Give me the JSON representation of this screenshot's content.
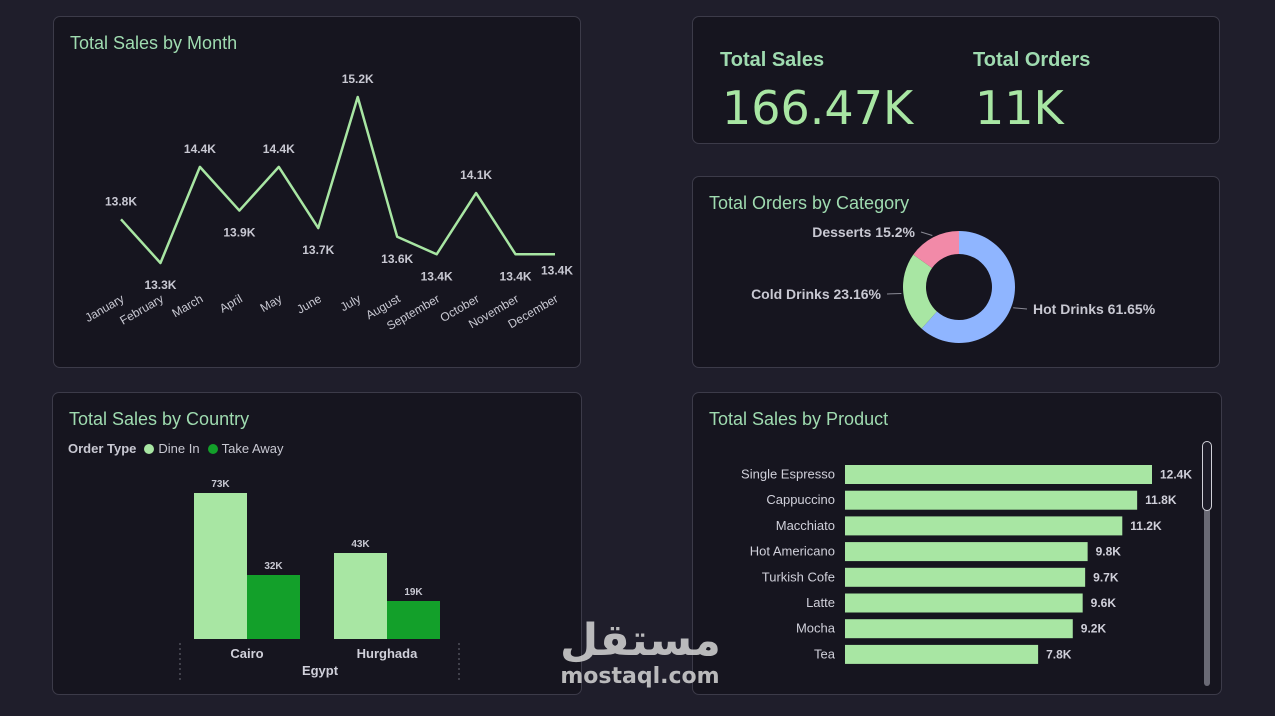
{
  "kpis": {
    "total_sales_label": "Total Sales",
    "total_sales_value": "166.47K",
    "total_orders_label": "Total Orders",
    "total_orders_value": "11K"
  },
  "legend": {
    "title": "Order Type",
    "items": [
      "Dine In",
      "Take Away"
    ]
  },
  "watermark": {
    "arabic": "مستقل",
    "latin": "mostaql.com"
  },
  "colors": {
    "background": "#1f1e2b",
    "panel": "#16151f",
    "title": "#9fdbb0",
    "line": "#a8e6a3",
    "dine_in": "#a8e6a3",
    "take_away": "#13a02a",
    "hot_drinks": "#8fb5ff",
    "cold_drinks": "#a8e6a3",
    "desserts": "#f28aa8"
  },
  "chart_data": [
    {
      "type": "line",
      "title": "Total Sales by Month",
      "x": [
        "January",
        "February",
        "March",
        "April",
        "May",
        "June",
        "July",
        "August",
        "September",
        "October",
        "November",
        "December"
      ],
      "values": [
        13.8,
        13.3,
        14.4,
        13.9,
        14.4,
        13.7,
        15.2,
        13.6,
        13.4,
        14.1,
        13.4,
        13.4
      ],
      "labels": [
        "13.8K",
        "13.3K",
        "14.4K",
        "13.9K",
        "14.4K",
        "13.7K",
        "15.2K",
        "13.6K",
        "13.4K",
        "14.1K",
        "13.4K",
        "13.4K"
      ],
      "unit": "K"
    },
    {
      "type": "pie",
      "title": "Total Orders by Category",
      "slices": [
        {
          "name": "Hot Drinks",
          "value": 61.65,
          "label": "Hot Drinks 61.65%"
        },
        {
          "name": "Cold Drinks",
          "value": 23.16,
          "label": "Cold Drinks 23.16%"
        },
        {
          "name": "Desserts",
          "value": 15.2,
          "label": "Desserts 15.2%"
        }
      ]
    },
    {
      "type": "bar",
      "title": "Total Sales by Country",
      "categories": [
        "Cairo",
        "Hurghada"
      ],
      "group_label": "Egypt",
      "series": [
        {
          "name": "Dine In",
          "values": [
            73,
            43
          ],
          "labels": [
            "73K",
            "43K"
          ]
        },
        {
          "name": "Take Away",
          "values": [
            32,
            19
          ],
          "labels": [
            "32K",
            "19K"
          ]
        }
      ],
      "unit": "K"
    },
    {
      "type": "bar",
      "title": "Total Sales by Product",
      "orientation": "horizontal",
      "categories": [
        "Single Espresso",
        "Cappuccino",
        "Macchiato",
        "Hot Americano",
        "Turkish Cofe",
        "Latte",
        "Mocha",
        "Tea"
      ],
      "values": [
        12.4,
        11.8,
        11.2,
        9.8,
        9.7,
        9.6,
        9.2,
        7.8
      ],
      "labels": [
        "12.4K",
        "11.8K",
        "11.2K",
        "9.8K",
        "9.7K",
        "9.6K",
        "9.2K",
        "7.8K"
      ],
      "unit": "K"
    }
  ]
}
